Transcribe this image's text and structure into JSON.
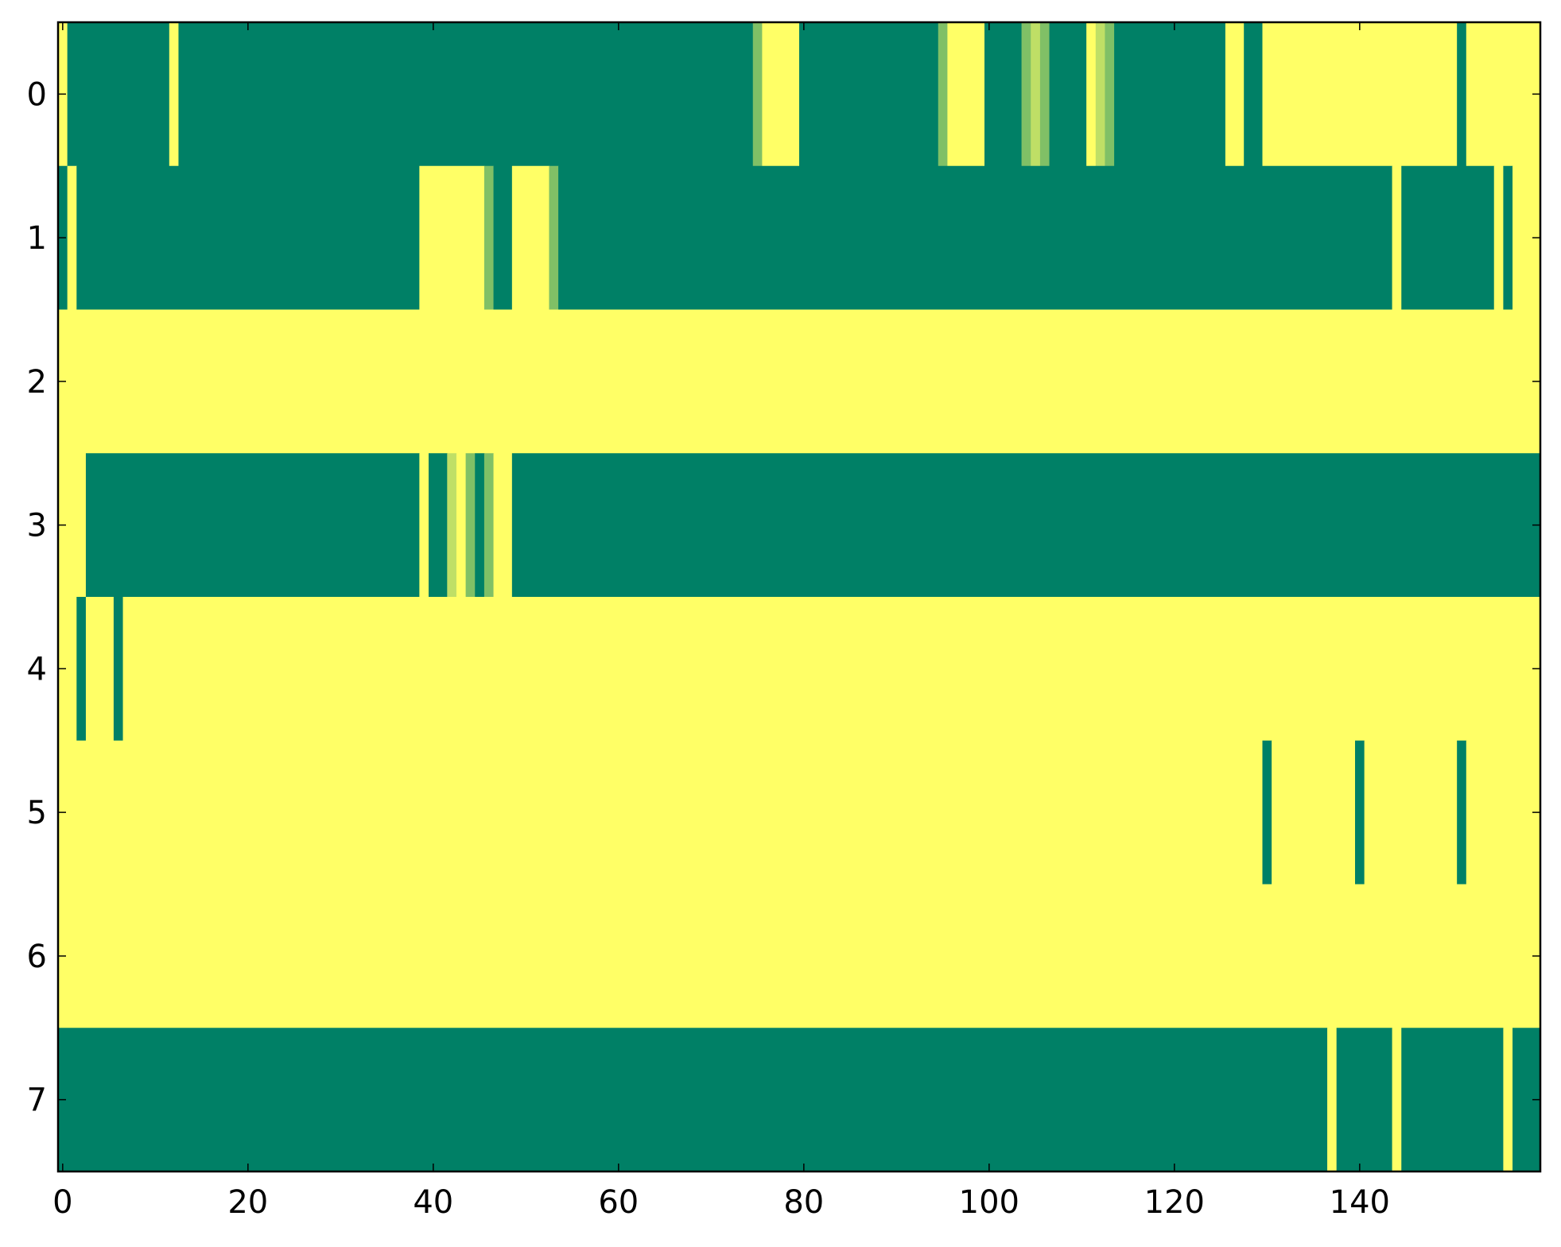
{
  "chart_data": {
    "type": "heatmap",
    "title": "",
    "xlabel": "",
    "ylabel": "",
    "xlim": [
      -0.5,
      159.5
    ],
    "ylim": [
      7.5,
      -0.5
    ],
    "xticks": [
      0,
      20,
      40,
      60,
      80,
      100,
      120,
      140
    ],
    "yticks": [
      0,
      1,
      2,
      3,
      4,
      5,
      6,
      7
    ],
    "colormap": "summer",
    "colors": {
      "low": "#008066",
      "low_mid": "#4da366",
      "mid": "#99cc66",
      "high_mid": "#cce666",
      "high": "#ffff66"
    },
    "n_columns": 160,
    "value_range": [
      0,
      1
    ],
    "rows": [
      {
        "row": 0,
        "default": 0.0,
        "segments": [
          [
            0,
            0,
            1.0
          ],
          [
            12,
            12,
            1.0
          ],
          [
            75,
            75,
            0.5
          ],
          [
            76,
            79,
            1.0
          ],
          [
            95,
            95,
            0.5
          ],
          [
            96,
            99,
            1.0
          ],
          [
            104,
            104,
            0.5
          ],
          [
            105,
            105,
            0.75
          ],
          [
            106,
            106,
            0.5
          ],
          [
            111,
            111,
            1.0
          ],
          [
            112,
            112,
            0.75
          ],
          [
            113,
            113,
            0.5
          ],
          [
            126,
            127,
            1.0
          ],
          [
            130,
            150,
            1.0
          ],
          [
            152,
            159,
            1.0
          ]
        ]
      },
      {
        "row": 1,
        "default": 0.0,
        "segments": [
          [
            1,
            1,
            1.0
          ],
          [
            39,
            45,
            1.0
          ],
          [
            46,
            46,
            0.5
          ],
          [
            49,
            52,
            1.0
          ],
          [
            53,
            53,
            0.5
          ],
          [
            144,
            144,
            1.0
          ],
          [
            155,
            155,
            1.0
          ],
          [
            157,
            159,
            1.0
          ]
        ]
      },
      {
        "row": 2,
        "default": 1.0,
        "segments": []
      },
      {
        "row": 3,
        "default": 0.0,
        "segments": [
          [
            0,
            2,
            1.0
          ],
          [
            39,
            39,
            1.0
          ],
          [
            42,
            42,
            0.75
          ],
          [
            43,
            43,
            1.0
          ],
          [
            44,
            44,
            0.5
          ],
          [
            46,
            46,
            0.5
          ],
          [
            47,
            48,
            1.0
          ]
        ]
      },
      {
        "row": 4,
        "default": 1.0,
        "segments": [
          [
            2,
            2,
            0.0
          ],
          [
            6,
            6,
            0.0
          ]
        ]
      },
      {
        "row": 5,
        "default": 1.0,
        "segments": [
          [
            130,
            130,
            0.0
          ],
          [
            140,
            140,
            0.0
          ],
          [
            151,
            151,
            0.0
          ]
        ]
      },
      {
        "row": 6,
        "default": 1.0,
        "segments": []
      },
      {
        "row": 7,
        "default": 0.0,
        "segments": [
          [
            137,
            137,
            1.0
          ],
          [
            144,
            144,
            1.0
          ],
          [
            156,
            156,
            1.0
          ]
        ]
      }
    ]
  }
}
